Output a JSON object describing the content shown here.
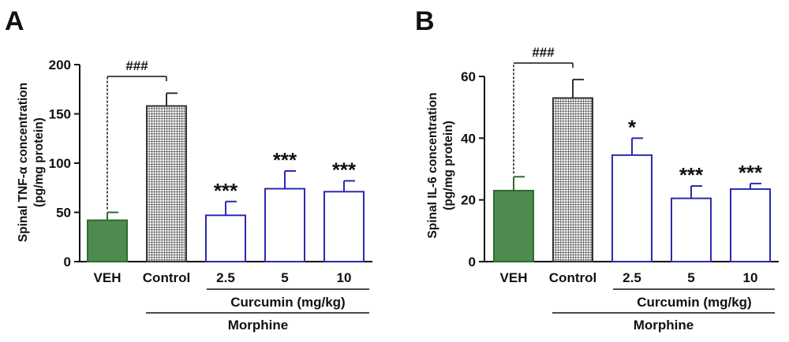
{
  "chart_data": [
    {
      "panel": "A",
      "type": "bar",
      "ylabel_line1": "Spinal TNF-α concentration",
      "ylabel_line2": "(pg/mg protein)",
      "ylim": [
        0,
        200
      ],
      "yticks": [
        "0",
        "50",
        "100",
        "150",
        "200"
      ],
      "categories": [
        "VEH",
        "Control",
        "2.5",
        "5",
        "10"
      ],
      "values": [
        42,
        158,
        47,
        74,
        71
      ],
      "errors": [
        8,
        13,
        14,
        18,
        11
      ],
      "significance": [
        "",
        "",
        "***",
        "***",
        "***"
      ],
      "bracket_label": "###",
      "group_label": "Curcumin (mg/kg)",
      "outer_group_label": "Morphine",
      "colors": {
        "veh": "#4f8a4f",
        "veh_edge": "#2f6b2f",
        "control": "#333333",
        "curcumin": "#2b2bb0"
      }
    },
    {
      "panel": "B",
      "type": "bar",
      "ylabel_line1": "Spinal IL-6 concentration",
      "ylabel_line2": "(pg/mg protein)",
      "ylim": [
        0,
        60
      ],
      "yticks": [
        "0",
        "20",
        "40",
        "60"
      ],
      "categories": [
        "VEH",
        "Control",
        "2.5",
        "5",
        "10"
      ],
      "values": [
        23,
        53,
        34.5,
        20.5,
        23.5
      ],
      "errors": [
        4.5,
        6,
        5.5,
        4,
        1.8
      ],
      "significance": [
        "",
        "",
        "*",
        "***",
        "***"
      ],
      "bracket_label": "###",
      "group_label": "Curcumin (mg/kg)",
      "outer_group_label": "Morphine",
      "colors": {
        "veh": "#4f8a4f",
        "veh_edge": "#2f6b2f",
        "control": "#333333",
        "curcumin": "#2b2bb0"
      }
    }
  ]
}
